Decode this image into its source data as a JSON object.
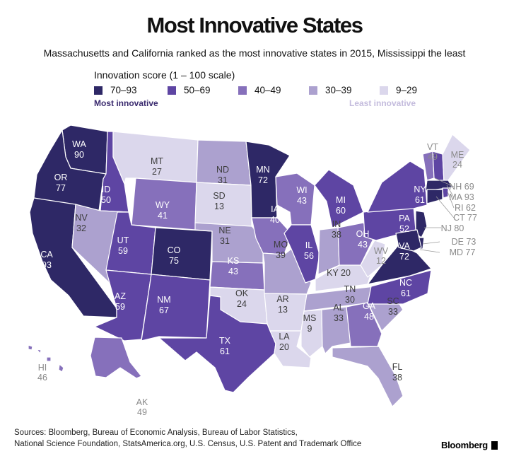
{
  "title": "Most Innovative States",
  "subtitle": "Massachusetts and California ranked as the most innovative states in 2015, Mississippi the least",
  "legend": {
    "title": "Innovation score (1 – 100 scale)",
    "bins": [
      {
        "label": "70–93",
        "color": "#2e2866"
      },
      {
        "label": "50–69",
        "color": "#5e45a3"
      },
      {
        "label": "40–49",
        "color": "#8670bb"
      },
      {
        "label": "30–39",
        "color": "#aca1cf"
      },
      {
        "label": "9–29",
        "color": "#dbd7ec"
      }
    ],
    "most_label": "Most innovative",
    "least_label": "Least innovative"
  },
  "states": [
    {
      "abbr": "WA",
      "score": 90
    },
    {
      "abbr": "OR",
      "score": 77
    },
    {
      "abbr": "CA",
      "score": 93
    },
    {
      "abbr": "ID",
      "score": 50
    },
    {
      "abbr": "NV",
      "score": 32
    },
    {
      "abbr": "MT",
      "score": 27
    },
    {
      "abbr": "WY",
      "score": 41
    },
    {
      "abbr": "UT",
      "score": 59
    },
    {
      "abbr": "AZ",
      "score": 59
    },
    {
      "abbr": "CO",
      "score": 75
    },
    {
      "abbr": "NM",
      "score": 67
    },
    {
      "abbr": "ND",
      "score": 31
    },
    {
      "abbr": "SD",
      "score": 13
    },
    {
      "abbr": "NE",
      "score": 31
    },
    {
      "abbr": "KS",
      "score": 43
    },
    {
      "abbr": "OK",
      "score": 24
    },
    {
      "abbr": "TX",
      "score": 61
    },
    {
      "abbr": "MN",
      "score": 72
    },
    {
      "abbr": "IA",
      "score": 40
    },
    {
      "abbr": "MO",
      "score": 39
    },
    {
      "abbr": "AR",
      "score": 13
    },
    {
      "abbr": "LA",
      "score": 20
    },
    {
      "abbr": "WI",
      "score": 43
    },
    {
      "abbr": "IL",
      "score": 56
    },
    {
      "abbr": "MI",
      "score": 60
    },
    {
      "abbr": "IN",
      "score": 38
    },
    {
      "abbr": "OH",
      "score": 43
    },
    {
      "abbr": "KY",
      "score": 20
    },
    {
      "abbr": "TN",
      "score": 30
    },
    {
      "abbr": "MS",
      "score": 9
    },
    {
      "abbr": "AL",
      "score": 33
    },
    {
      "abbr": "GA",
      "score": 48
    },
    {
      "abbr": "FL",
      "score": 38
    },
    {
      "abbr": "SC",
      "score": 33
    },
    {
      "abbr": "NC",
      "score": 61
    },
    {
      "abbr": "VA",
      "score": 72
    },
    {
      "abbr": "WV",
      "score": 12
    },
    {
      "abbr": "PA",
      "score": 52
    },
    {
      "abbr": "NY",
      "score": 61
    },
    {
      "abbr": "VT",
      "score": 49
    },
    {
      "abbr": "ME",
      "score": 24
    },
    {
      "abbr": "NH",
      "score": 69
    },
    {
      "abbr": "MA",
      "score": 93
    },
    {
      "abbr": "RI",
      "score": 62
    },
    {
      "abbr": "CT",
      "score": 77
    },
    {
      "abbr": "NJ",
      "score": 80
    },
    {
      "abbr": "DE",
      "score": 73
    },
    {
      "abbr": "MD",
      "score": 77
    },
    {
      "abbr": "AK",
      "score": 49
    },
    {
      "abbr": "HI",
      "score": 46
    }
  ],
  "sources": [
    "Sources: Bloomberg, Bureau of Economic Analysis, Bureau of Labor Statistics,",
    "National Science Foundation, StatsAmerica.org, U.S. Census, U.S. Patent and Trademark Office"
  ],
  "brand": "Bloomberg"
}
